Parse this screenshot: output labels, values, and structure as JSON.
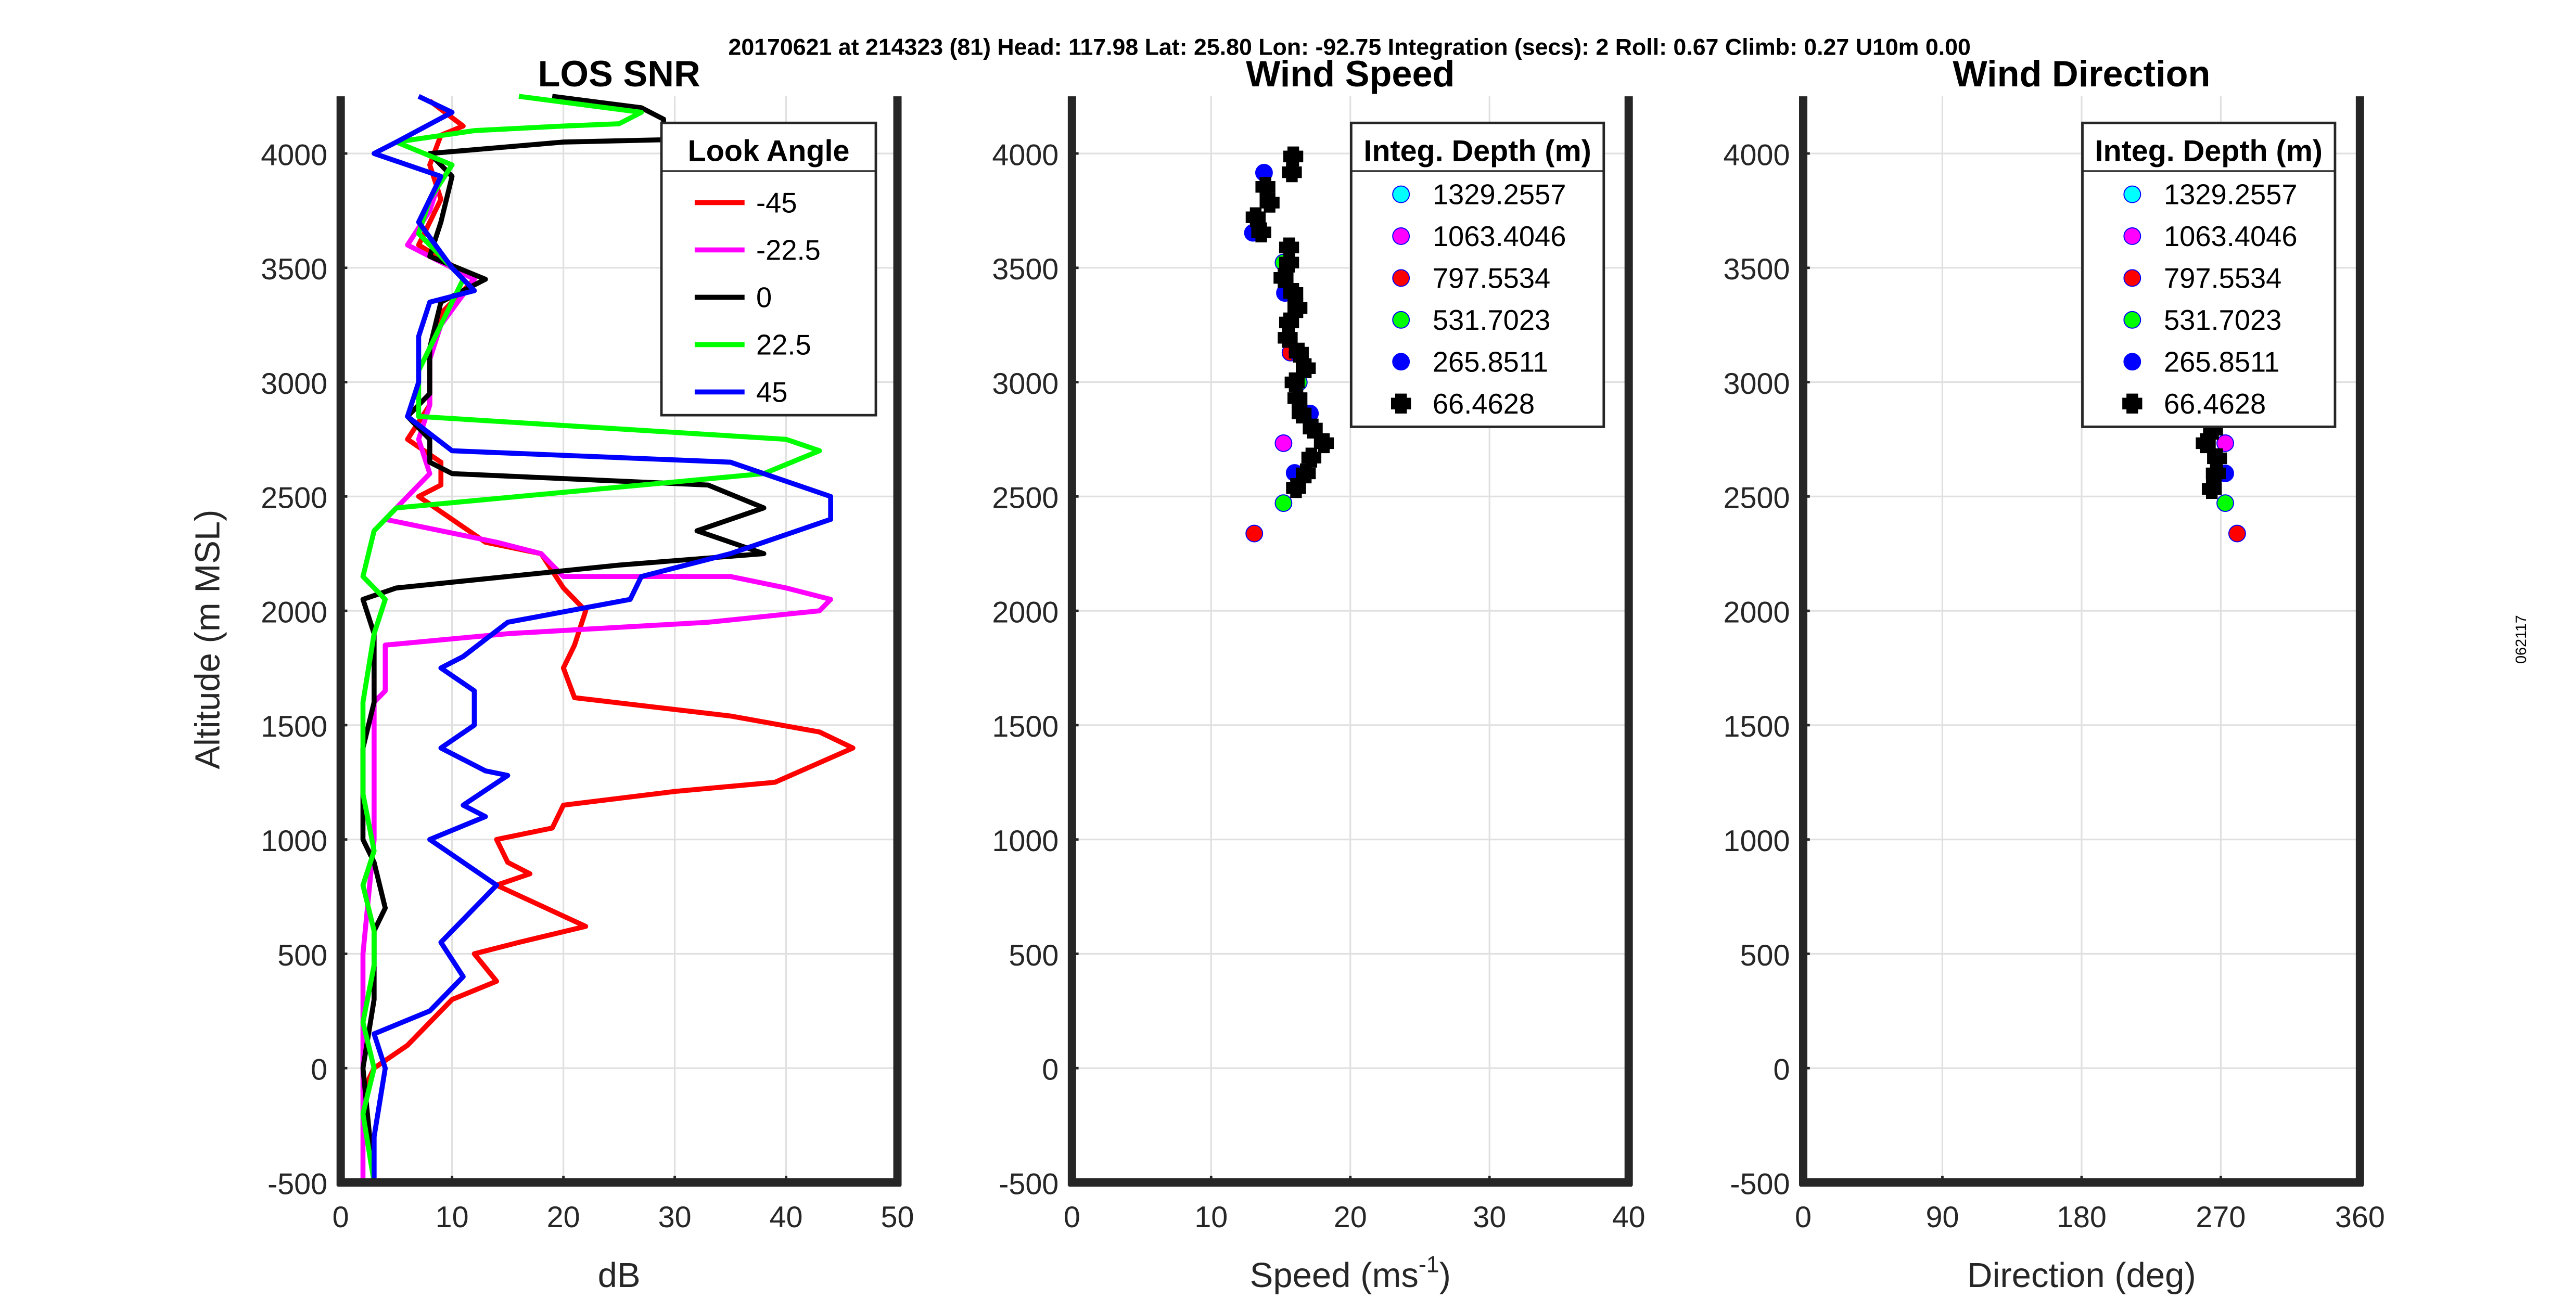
{
  "suptitle": "20170621 at 214323 (81)  Head: 117.98  Lat: 25.80  Lon: -92.75  Integration (secs): 2  Roll: 0.67  Climb: 0.27  U10m 0.00",
  "side_label": "062117",
  "chart_data": [
    {
      "type": "line",
      "title": "LOS SNR",
      "xlabel": "dB",
      "ylabel": "Altitude (m MSL)",
      "xlim": [
        0,
        50
      ],
      "ylim": [
        -500,
        4250
      ],
      "xticks": [
        0,
        10,
        20,
        30,
        40,
        50
      ],
      "yticks": [
        -500,
        0,
        500,
        1000,
        1500,
        2000,
        2500,
        3000,
        3500,
        4000
      ],
      "grid": true,
      "legend": {
        "title": "Look Angle",
        "placement": "top-right"
      },
      "series": [
        {
          "name": "-45",
          "color": "#ff0000",
          "points": [
            [
              8,
              4230
            ],
            [
              11,
              4120
            ],
            [
              9,
              4080
            ],
            [
              8,
              3950
            ],
            [
              9,
              3800
            ],
            [
              7,
              3600
            ],
            [
              12,
              3450
            ],
            [
              9,
              3300
            ],
            [
              8,
              3100
            ],
            [
              8,
              2900
            ],
            [
              6,
              2750
            ],
            [
              9,
              2650
            ],
            [
              9,
              2550
            ],
            [
              7,
              2500
            ],
            [
              13,
              2300
            ],
            [
              18,
              2250
            ],
            [
              20,
              2100
            ],
            [
              22,
              2000
            ],
            [
              21,
              1850
            ],
            [
              20,
              1750
            ],
            [
              21,
              1620
            ],
            [
              35,
              1540
            ],
            [
              43,
              1470
            ],
            [
              46,
              1400
            ],
            [
              39,
              1250
            ],
            [
              30,
              1210
            ],
            [
              20,
              1150
            ],
            [
              19,
              1050
            ],
            [
              14,
              1000
            ],
            [
              15,
              900
            ],
            [
              17,
              850
            ],
            [
              14,
              800
            ],
            [
              22,
              620
            ],
            [
              16,
              550
            ],
            [
              12,
              500
            ],
            [
              14,
              380
            ],
            [
              10,
              300
            ],
            [
              6,
              100
            ],
            [
              3,
              0
            ],
            [
              2,
              -100
            ],
            [
              3,
              -500
            ]
          ]
        },
        {
          "name": "-22.5",
          "color": "#ff00ff",
          "points": [
            [
              9,
              3900
            ],
            [
              8,
              3750
            ],
            [
              6,
              3600
            ],
            [
              12,
              3450
            ],
            [
              9,
              3250
            ],
            [
              8,
              3100
            ],
            [
              8,
              2900
            ],
            [
              7,
              2750
            ],
            [
              8,
              2600
            ],
            [
              5,
              2450
            ],
            [
              4,
              2400
            ],
            [
              14,
              2300
            ],
            [
              18,
              2250
            ],
            [
              20,
              2150
            ],
            [
              35,
              2150
            ],
            [
              40,
              2100
            ],
            [
              44,
              2050
            ],
            [
              43,
              2000
            ],
            [
              33,
              1950
            ],
            [
              15,
              1900
            ],
            [
              4,
              1850
            ],
            [
              4,
              1650
            ],
            [
              3,
              1600
            ],
            [
              3,
              1000
            ],
            [
              2,
              500
            ],
            [
              2,
              0
            ],
            [
              2,
              -500
            ]
          ]
        },
        {
          "name": "0",
          "color": "#000000",
          "points": [
            [
              19,
              4250
            ],
            [
              27,
              4200
            ],
            [
              29,
              4150
            ],
            [
              29,
              4060
            ],
            [
              20,
              4050
            ],
            [
              8,
              4000
            ],
            [
              10,
              3900
            ],
            [
              9,
              3700
            ],
            [
              8,
              3550
            ],
            [
              13,
              3450
            ],
            [
              9,
              3350
            ],
            [
              8,
              3150
            ],
            [
              8,
              2950
            ],
            [
              6,
              2850
            ],
            [
              8,
              2750
            ],
            [
              8,
              2650
            ],
            [
              10,
              2600
            ],
            [
              33,
              2550
            ],
            [
              38,
              2450
            ],
            [
              32,
              2350
            ],
            [
              38,
              2250
            ],
            [
              25,
              2200
            ],
            [
              5,
              2100
            ],
            [
              2,
              2050
            ],
            [
              3,
              1900
            ],
            [
              3,
              1600
            ],
            [
              2,
              1400
            ],
            [
              2,
              1000
            ],
            [
              3,
              900
            ],
            [
              4,
              700
            ],
            [
              3,
              600
            ],
            [
              3,
              300
            ],
            [
              2,
              0
            ],
            [
              3,
              -500
            ]
          ]
        },
        {
          "name": "22.5",
          "color": "#00ff00",
          "points": [
            [
              16,
              4250
            ],
            [
              27,
              4180
            ],
            [
              25,
              4130
            ],
            [
              20,
              4120
            ],
            [
              12,
              4100
            ],
            [
              5,
              4050
            ],
            [
              10,
              3950
            ],
            [
              8,
              3800
            ],
            [
              7,
              3650
            ],
            [
              11,
              3450
            ],
            [
              9,
              3250
            ],
            [
              7,
              3050
            ],
            [
              7,
              2950
            ],
            [
              7,
              2850
            ],
            [
              40,
              2750
            ],
            [
              43,
              2700
            ],
            [
              38,
              2600
            ],
            [
              5,
              2450
            ],
            [
              3,
              2350
            ],
            [
              2,
              2150
            ],
            [
              4,
              2050
            ],
            [
              3,
              1900
            ],
            [
              2,
              1600
            ],
            [
              2,
              1200
            ],
            [
              3,
              950
            ],
            [
              2,
              800
            ],
            [
              3,
              600
            ],
            [
              3,
              450
            ],
            [
              2,
              200
            ],
            [
              3,
              0
            ],
            [
              2,
              -200
            ],
            [
              3,
              -500
            ]
          ]
        },
        {
          "name": "45",
          "color": "#0000ff",
          "points": [
            [
              7,
              4250
            ],
            [
              10,
              4180
            ],
            [
              5,
              4050
            ],
            [
              3,
              4000
            ],
            [
              9,
              3900
            ],
            [
              7,
              3700
            ],
            [
              10,
              3500
            ],
            [
              12,
              3400
            ],
            [
              8,
              3350
            ],
            [
              7,
              3200
            ],
            [
              7,
              3000
            ],
            [
              6,
              2850
            ],
            [
              10,
              2700
            ],
            [
              35,
              2650
            ],
            [
              44,
              2500
            ],
            [
              44,
              2400
            ],
            [
              35,
              2250
            ],
            [
              27,
              2150
            ],
            [
              26,
              2050
            ],
            [
              15,
              1950
            ],
            [
              11,
              1800
            ],
            [
              9,
              1750
            ],
            [
              12,
              1650
            ],
            [
              12,
              1500
            ],
            [
              9,
              1400
            ],
            [
              13,
              1300
            ],
            [
              15,
              1280
            ],
            [
              11,
              1150
            ],
            [
              13,
              1100
            ],
            [
              8,
              1000
            ],
            [
              14,
              800
            ],
            [
              13,
              750
            ],
            [
              9,
              550
            ],
            [
              11,
              400
            ],
            [
              8,
              250
            ],
            [
              3,
              150
            ],
            [
              4,
              0
            ],
            [
              3,
              -300
            ],
            [
              3,
              -500
            ]
          ]
        }
      ]
    },
    {
      "type": "scatter",
      "title": "Wind Speed",
      "xlabel": "Speed (ms",
      "xlabel_sup": "-1",
      "xlabel_end": ")",
      "xlim": [
        0,
        40
      ],
      "ylim": [
        -500,
        4250
      ],
      "xticks": [
        0,
        10,
        20,
        30,
        40
      ],
      "yticks": [
        -500,
        0,
        500,
        1000,
        1500,
        2000,
        2500,
        3000,
        3500,
        4000
      ],
      "grid": true,
      "legend": {
        "title": "Integ. Depth (m)",
        "placement": "top-right"
      },
      "series": [
        {
          "name": "1329.2557",
          "color": "#00ffff",
          "marker": "circle",
          "points": []
        },
        {
          "name": "1063.4046",
          "color": "#ff00ff",
          "marker": "circle",
          "points": [
            [
              15.2,
              2733
            ]
          ]
        },
        {
          "name": "797.5534",
          "color": "#ff0000",
          "marker": "circle",
          "points": [
            [
              15.7,
              3129
            ],
            [
              13.1,
              2338
            ]
          ]
        },
        {
          "name": "531.7023",
          "color": "#00ff00",
          "marker": "circle",
          "points": [
            [
              15.2,
              3523
            ],
            [
              16.3,
              2999
            ],
            [
              15.2,
              2471
            ]
          ]
        },
        {
          "name": "265.8511",
          "color": "#0000ff",
          "marker": "circle",
          "points": [
            [
              13.8,
              3916
            ],
            [
              13.0,
              3653
            ],
            [
              15.3,
              3390
            ],
            [
              16.2,
              3129
            ],
            [
              17.1,
              2863
            ],
            [
              16.0,
              2603
            ]
          ]
        },
        {
          "name": "66.4628",
          "color": "#000000",
          "marker": "plus",
          "points": [
            [
              15.9,
              3987
            ],
            [
              15.8,
              3918
            ],
            [
              13.9,
              3854
            ],
            [
              14.2,
              3785
            ],
            [
              13.2,
              3721
            ],
            [
              13.6,
              3655
            ],
            [
              15.6,
              3589
            ],
            [
              15.6,
              3523
            ],
            [
              15.2,
              3456
            ],
            [
              15.9,
              3390
            ],
            [
              16.2,
              3324
            ],
            [
              15.6,
              3261
            ],
            [
              15.5,
              3194
            ],
            [
              16.3,
              3129
            ],
            [
              16.8,
              3061
            ],
            [
              16.0,
              2999
            ],
            [
              16.2,
              2930
            ],
            [
              16.5,
              2863
            ],
            [
              17.3,
              2797
            ],
            [
              18.1,
              2733
            ],
            [
              17.2,
              2670
            ],
            [
              16.8,
              2601
            ],
            [
              16.1,
              2537
            ]
          ]
        }
      ]
    },
    {
      "type": "scatter",
      "title": "Wind Direction",
      "xlabel": "Direction (deg)",
      "xlim": [
        0,
        360
      ],
      "ylim": [
        -500,
        4250
      ],
      "xticks": [
        0,
        90,
        180,
        270,
        360
      ],
      "yticks": [
        -500,
        0,
        500,
        1000,
        1500,
        2000,
        2500,
        3000,
        3500,
        4000
      ],
      "grid": true,
      "legend": {
        "title": "Integ. Depth (m)",
        "placement": "top-right"
      },
      "series": [
        {
          "name": "1329.2557",
          "color": "#00ffff",
          "marker": "circle",
          "points": []
        },
        {
          "name": "1063.4046",
          "color": "#ff00ff",
          "marker": "circle",
          "points": [
            [
              272.9,
              2733
            ]
          ]
        },
        {
          "name": "797.5534",
          "color": "#ff0000",
          "marker": "circle",
          "points": [
            [
              280.6,
              2338
            ]
          ]
        },
        {
          "name": "531.7023",
          "color": "#00ff00",
          "marker": "circle",
          "points": [
            [
              272.9,
              2471
            ]
          ]
        },
        {
          "name": "265.8511",
          "color": "#0000ff",
          "marker": "circle",
          "points": [
            [
              272.9,
              2601
            ]
          ]
        },
        {
          "name": "66.4628",
          "color": "#000000",
          "marker": "plus",
          "points": [
            [
              265,
              2850
            ],
            [
              265,
              2792
            ],
            [
              260.3,
              2733
            ],
            [
              267.6,
              2667
            ],
            [
              266.8,
              2601
            ],
            [
              264.2,
              2533
            ]
          ]
        }
      ]
    }
  ]
}
